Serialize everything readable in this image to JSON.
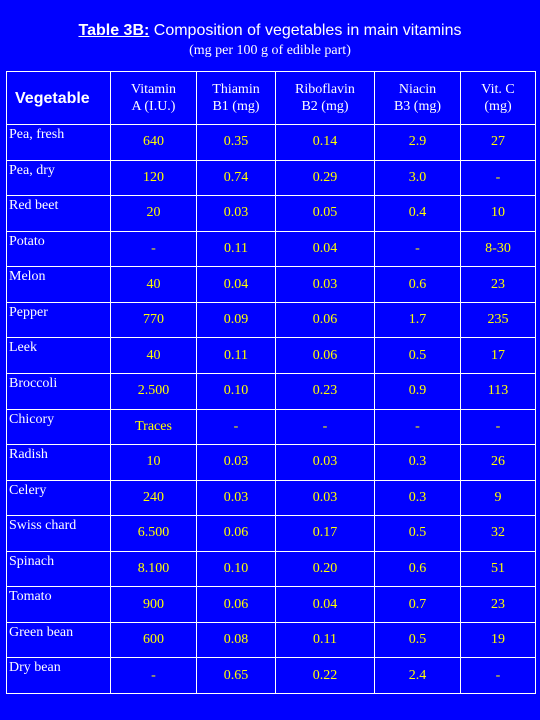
{
  "title": {
    "lead": "Table 3B:",
    "rest": " Composition of vegetables in main vitamins",
    "subtitle": "(mg per 100 g of edible part)"
  },
  "columns": [
    [
      "Vegetable"
    ],
    [
      "Vitamin",
      "A (I.U.)"
    ],
    [
      "Thiamin",
      "B1 (mg)"
    ],
    [
      "Riboflavin",
      "B2 (mg)"
    ],
    [
      "Niacin",
      "B3 (mg)"
    ],
    [
      "Vit. C",
      "(mg)"
    ]
  ],
  "rows": [
    [
      "Pea, fresh",
      "640",
      "0.35",
      "0.14",
      "2.9",
      "27"
    ],
    [
      "Pea, dry",
      "120",
      "0.74",
      "0.29",
      "3.0",
      "-"
    ],
    [
      "Red beet",
      "20",
      "0.03",
      "0.05",
      "0.4",
      "10"
    ],
    [
      "Potato",
      "-",
      "0.11",
      "0.04",
      "-",
      "8-30"
    ],
    [
      "Melon",
      "40",
      "0.04",
      "0.03",
      "0.6",
      "23"
    ],
    [
      "Pepper",
      "770",
      "0.09",
      "0.06",
      "1.7",
      "235"
    ],
    [
      "Leek",
      "40",
      "0.11",
      "0.06",
      "0.5",
      "17"
    ],
    [
      "Broccoli",
      "2.500",
      "0.10",
      "0.23",
      "0.9",
      "113"
    ],
    [
      "Chicory",
      "Traces",
      "-",
      "-",
      "-",
      "-"
    ],
    [
      "Radish",
      "10",
      "0.03",
      "0.03",
      "0.3",
      "26"
    ],
    [
      "Celery",
      "240",
      "0.03",
      "0.03",
      "0.3",
      "9"
    ],
    [
      "Swiss chard",
      "6.500",
      "0.06",
      "0.17",
      "0.5",
      "32"
    ],
    [
      "Spinach",
      "8.100",
      "0.10",
      "0.20",
      "0.6",
      "51"
    ],
    [
      "Tomato",
      "900",
      "0.06",
      "0.04",
      "0.7",
      "23"
    ],
    [
      "Green bean",
      "600",
      "0.08",
      "0.11",
      "0.5",
      "19"
    ],
    [
      "Dry bean",
      "-",
      "0.65",
      "0.22",
      "2.4",
      "-"
    ]
  ],
  "colors": {
    "background": "#0000ff",
    "values": "#ffff00",
    "labels": "#ffffff"
  }
}
